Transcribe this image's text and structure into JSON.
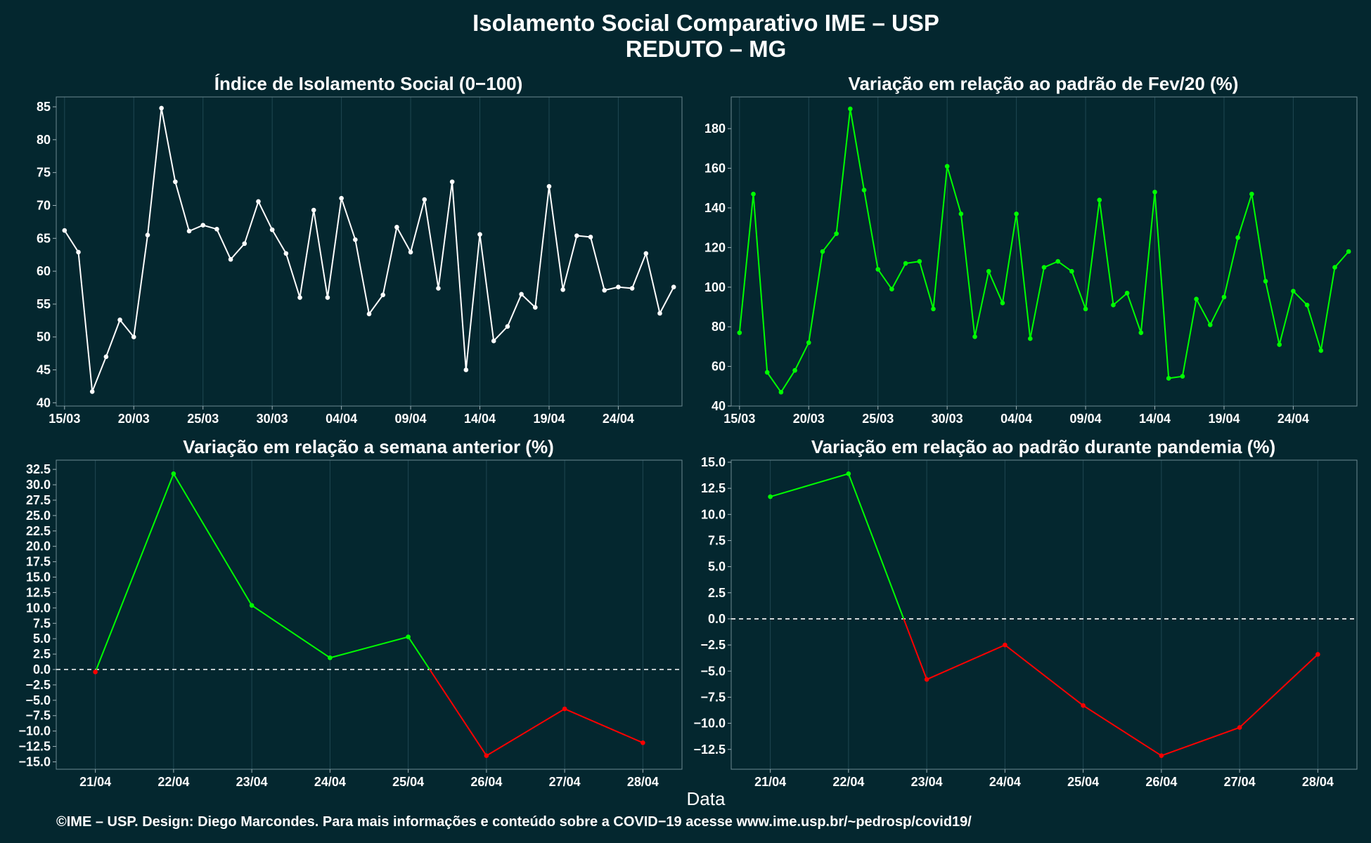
{
  "header": {
    "title": "Isolamento Social Comparativo IME – USP",
    "subtitle": "REDUTO – MG"
  },
  "xaxis_title": "Data",
  "caption": "©IME – USP. Design: Diego Marcondes. Para mais informações e conteúdo sobre a COVID−19 acesse www.ime.usp.br/~pedrosp/covid19/",
  "colors": {
    "background": "#04272f",
    "white_series": "#ffffff",
    "green": "#00ff00",
    "red": "#ff0000",
    "zero_line": "#ffffff"
  },
  "chart_data": [
    {
      "id": "isolamento",
      "type": "line",
      "title": "Índice de Isolamento Social (0−100)",
      "color": "#ffffff",
      "ylim": [
        39.5,
        86.5
      ],
      "yticks": [
        40,
        45,
        50,
        55,
        60,
        65,
        70,
        75,
        80,
        85
      ],
      "xlim": [
        -0.6,
        44.6
      ],
      "xticks": [
        {
          "i": 0,
          "label": "15/03"
        },
        {
          "i": 5,
          "label": "20/03"
        },
        {
          "i": 10,
          "label": "25/03"
        },
        {
          "i": 15,
          "label": "30/03"
        },
        {
          "i": 20,
          "label": "04/04"
        },
        {
          "i": 25,
          "label": "09/04"
        },
        {
          "i": 30,
          "label": "14/04"
        },
        {
          "i": 35,
          "label": "19/04"
        },
        {
          "i": 40,
          "label": "24/04"
        }
      ],
      "values": [
        66.2,
        62.9,
        41.7,
        47.0,
        52.6,
        50.0,
        65.5,
        84.8,
        73.6,
        66.1,
        67.0,
        66.4,
        61.8,
        64.2,
        70.6,
        66.3,
        62.7,
        56.0,
        69.3,
        56.0,
        71.1,
        64.8,
        53.5,
        56.4,
        66.7,
        62.9,
        70.9,
        57.4,
        73.6,
        45.0,
        65.6,
        49.4,
        51.6,
        56.5,
        54.5,
        72.9,
        57.2,
        65.4,
        65.2,
        57.1,
        57.6,
        57.4,
        62.7,
        53.6,
        57.6
      ]
    },
    {
      "id": "fev20",
      "type": "line",
      "title": "Variação em relação ao padrão de Fev/20 (%)",
      "color": "#00ff00",
      "ylim": [
        40,
        196
      ],
      "yticks": [
        40,
        60,
        80,
        100,
        120,
        140,
        160,
        180
      ],
      "xlim": [
        -0.6,
        44.6
      ],
      "xticks": [
        {
          "i": 0,
          "label": "15/03"
        },
        {
          "i": 5,
          "label": "20/03"
        },
        {
          "i": 10,
          "label": "25/03"
        },
        {
          "i": 15,
          "label": "30/03"
        },
        {
          "i": 20,
          "label": "04/04"
        },
        {
          "i": 25,
          "label": "09/04"
        },
        {
          "i": 30,
          "label": "14/04"
        },
        {
          "i": 35,
          "label": "19/04"
        },
        {
          "i": 40,
          "label": "24/04"
        }
      ],
      "values": [
        77,
        147,
        57,
        47,
        58,
        72,
        118,
        127,
        190,
        149,
        109,
        99,
        112,
        113,
        89,
        161,
        137,
        75,
        108,
        92,
        137,
        74,
        110,
        113,
        108,
        89,
        144,
        91,
        97,
        77,
        148,
        54,
        55,
        94,
        81,
        95,
        125,
        147,
        103,
        71,
        98,
        91,
        68,
        110,
        118
      ]
    },
    {
      "id": "semana",
      "type": "line",
      "title": "Variação em relação a semana anterior (%)",
      "ylim": [
        -16.2,
        34.0
      ],
      "yticks": [
        -15.0,
        -12.5,
        -10.0,
        -7.5,
        -5.0,
        -2.5,
        0.0,
        2.5,
        5.0,
        7.5,
        10.0,
        12.5,
        15.0,
        17.5,
        20.0,
        22.5,
        25.0,
        27.5,
        30.0,
        32.5
      ],
      "ytick_labels": [
        "−15.0",
        "−12.5",
        "−10.0",
        "−7.5",
        "−5.0",
        "−2.5",
        "0.0",
        "2.5",
        "5.0",
        "7.5",
        "10.0",
        "12.5",
        "15.0",
        "17.5",
        "20.0",
        "22.5",
        "25.0",
        "27.5",
        "30.0",
        "32.5"
      ],
      "categories": [
        "21/04",
        "22/04",
        "23/04",
        "24/04",
        "25/04",
        "26/04",
        "27/04",
        "28/04"
      ],
      "values": [
        -0.4,
        31.8,
        10.4,
        1.9,
        5.3,
        -14.0,
        -6.4,
        -11.9
      ],
      "positive_color": "#00ff00",
      "negative_color": "#ff0000",
      "zero_line": true
    },
    {
      "id": "pandemia",
      "type": "line",
      "title": "Variação em relação ao padrão durante pandemia (%)",
      "ylim": [
        -14.4,
        15.2
      ],
      "yticks": [
        -12.5,
        -10.0,
        -7.5,
        -5.0,
        -2.5,
        0.0,
        2.5,
        5.0,
        7.5,
        10.0,
        12.5,
        15.0
      ],
      "ytick_labels": [
        "−12.5",
        "−10.0",
        "−7.5",
        "−5.0",
        "−2.5",
        "0.0",
        "2.5",
        "5.0",
        "7.5",
        "10.0",
        "12.5",
        "15.0"
      ],
      "categories": [
        "21/04",
        "22/04",
        "23/04",
        "24/04",
        "25/04",
        "26/04",
        "27/04",
        "28/04"
      ],
      "values": [
        11.7,
        13.9,
        -5.8,
        -2.5,
        -8.3,
        -13.1,
        -10.4,
        -3.4
      ],
      "positive_color": "#00ff00",
      "negative_color": "#ff0000",
      "zero_line": true
    }
  ]
}
